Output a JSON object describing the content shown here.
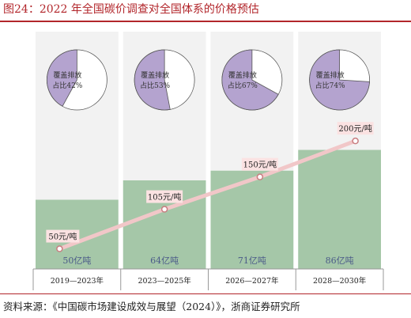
{
  "figure": {
    "title": "图24：2022 年全国碳价调查对全国体系的价格预估",
    "source": "资料来源：《中国碳市场建设成效与展望（2024）》，浙商证券研究所"
  },
  "chart_data": {
    "type": "bar",
    "categories": [
      "2019—2023年",
      "2023—2025年",
      "2026—2027年",
      "2028—2030年"
    ],
    "values": [
      50,
      64,
      71,
      86
    ],
    "value_labels": [
      "50亿吨",
      "64亿吨",
      "71亿吨",
      "86亿吨"
    ],
    "ylim": [
      0,
      100
    ],
    "price_line": {
      "values": [
        50,
        105,
        150,
        200
      ],
      "labels": [
        "50元/吨",
        "105元/吨",
        "150元/吨",
        "200元/吨"
      ],
      "ylim": [
        0,
        220
      ]
    },
    "coverage_pies": {
      "label_prefix": "覆盖排放",
      "labels": [
        "占比42%",
        "占比53%",
        "占比67%",
        "占比74%"
      ],
      "values": [
        42,
        53,
        67,
        74
      ]
    },
    "colors": {
      "bar": "#a5c7a8",
      "panel": "#f2f2f2",
      "pie_fill": "#b4a3cf",
      "pie_rest": "#ffffff",
      "line": "#f1c7c8",
      "marker": "#c97d80",
      "label_box": "#fbe2e2",
      "value_text": "#4a5a88"
    }
  }
}
